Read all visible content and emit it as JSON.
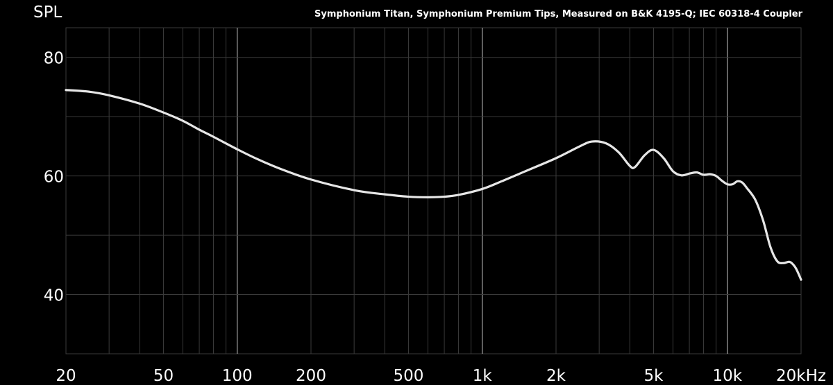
{
  "chart_data": {
    "type": "line",
    "title": "Symphonium Titan, Symphonium Premium Tips, Measured on B&K 4195-Q; IEC 60318-4 Coupler",
    "ylabel": "SPL",
    "x_scale": "log",
    "xlim": [
      20,
      20000
    ],
    "ylim": [
      30,
      85
    ],
    "y_ticks": [
      {
        "value": 80,
        "label": "80"
      },
      {
        "value": 60,
        "label": "60"
      },
      {
        "value": 40,
        "label": "40"
      }
    ],
    "x_ticks": [
      {
        "value": 20,
        "label": "20"
      },
      {
        "value": 50,
        "label": "50"
      },
      {
        "value": 100,
        "label": "100"
      },
      {
        "value": 200,
        "label": "200"
      },
      {
        "value": 500,
        "label": "500"
      },
      {
        "value": 1000,
        "label": "1k"
      },
      {
        "value": 2000,
        "label": "2k"
      },
      {
        "value": 5000,
        "label": "5k"
      },
      {
        "value": 10000,
        "label": "10k"
      },
      {
        "value": 20000,
        "label": "20kHz"
      }
    ],
    "grid": true,
    "colors": {
      "background": "#000000",
      "grid_minor": "#3a3a3a",
      "grid_major": "#aaaaaa",
      "curve": "#e6e6e6",
      "text": "#ffffff"
    },
    "series": [
      {
        "x": [
          20,
          25,
          30,
          40,
          50,
          60,
          70,
          80,
          100,
          120,
          150,
          200,
          300,
          400,
          500,
          600,
          700,
          800,
          1000,
          1200,
          1500,
          2000,
          2500,
          2800,
          3200,
          3600,
          4000,
          4200,
          4600,
          5000,
          5500,
          6000,
          6500,
          7000,
          7500,
          8000,
          8500,
          9000,
          9500,
          10000,
          10500,
          11000,
          11500,
          12000,
          13000,
          14000,
          15000,
          16000,
          17000,
          18000,
          19000,
          20000
        ],
        "y": [
          74.5,
          74.2,
          73.6,
          72.2,
          70.7,
          69.3,
          67.8,
          66.6,
          64.5,
          62.9,
          61.2,
          59.4,
          57.6,
          56.9,
          56.5,
          56.4,
          56.5,
          56.8,
          57.8,
          59.1,
          60.8,
          63.0,
          65.0,
          65.8,
          65.5,
          64.0,
          61.7,
          61.5,
          63.5,
          64.4,
          63.0,
          60.8,
          60.1,
          60.4,
          60.6,
          60.2,
          60.3,
          60.0,
          59.2,
          58.6,
          58.6,
          59.1,
          58.9,
          58.0,
          56.0,
          52.5,
          48.0,
          45.6,
          45.3,
          45.5,
          44.5,
          42.5
        ]
      }
    ]
  }
}
